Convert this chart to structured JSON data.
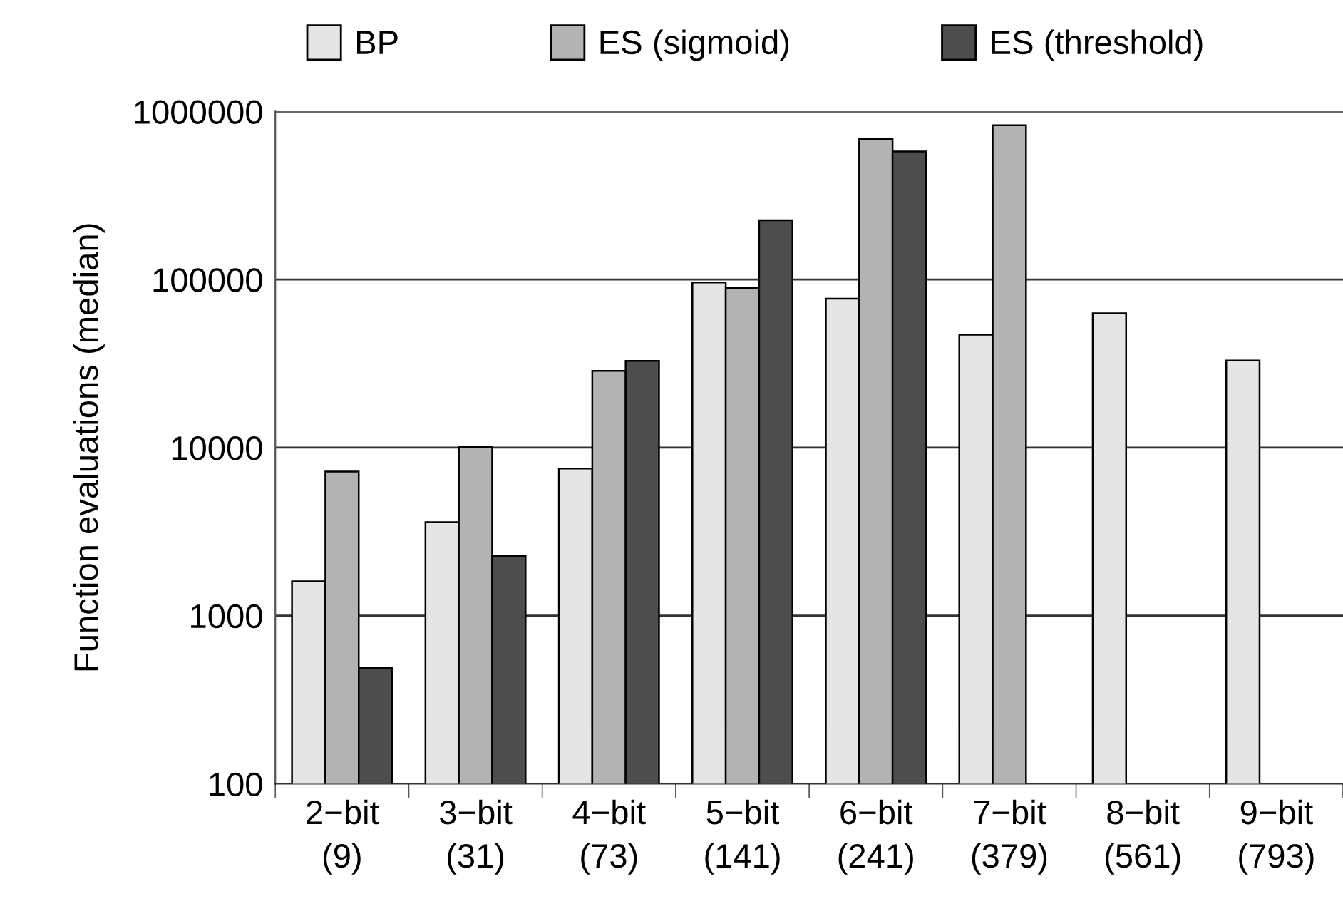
{
  "chart_data": {
    "type": "bar",
    "ylabel": "Function evaluations (median)",
    "categories": [
      "2−bit\n(9)",
      "3−bit\n(31)",
      "4−bit\n(73)",
      "5−bit\n(141)",
      "6−bit\n(241)",
      "7−bit\n(379)",
      "8−bit\n(561)",
      "9−bit\n(793)"
    ],
    "series": [
      {
        "name": "BP",
        "color": "#e5e5e5",
        "values": [
          1600,
          3600,
          7500,
          96000,
          77000,
          47000,
          63000,
          33000
        ]
      },
      {
        "name": "ES (sigmoid)",
        "color": "#b3b3b3",
        "values": [
          7200,
          10100,
          28600,
          89000,
          684000,
          828000,
          null,
          null
        ]
      },
      {
        "name": "ES (threshold)",
        "color": "#4d4d4d",
        "values": [
          490,
          2270,
          32800,
          225000,
          578000,
          null,
          null,
          null
        ]
      }
    ],
    "log": "y",
    "ylim": [
      100,
      1000000
    ],
    "yticks": [
      100,
      1000,
      10000,
      100000,
      1000000
    ],
    "grid": "y",
    "legend": "top"
  }
}
